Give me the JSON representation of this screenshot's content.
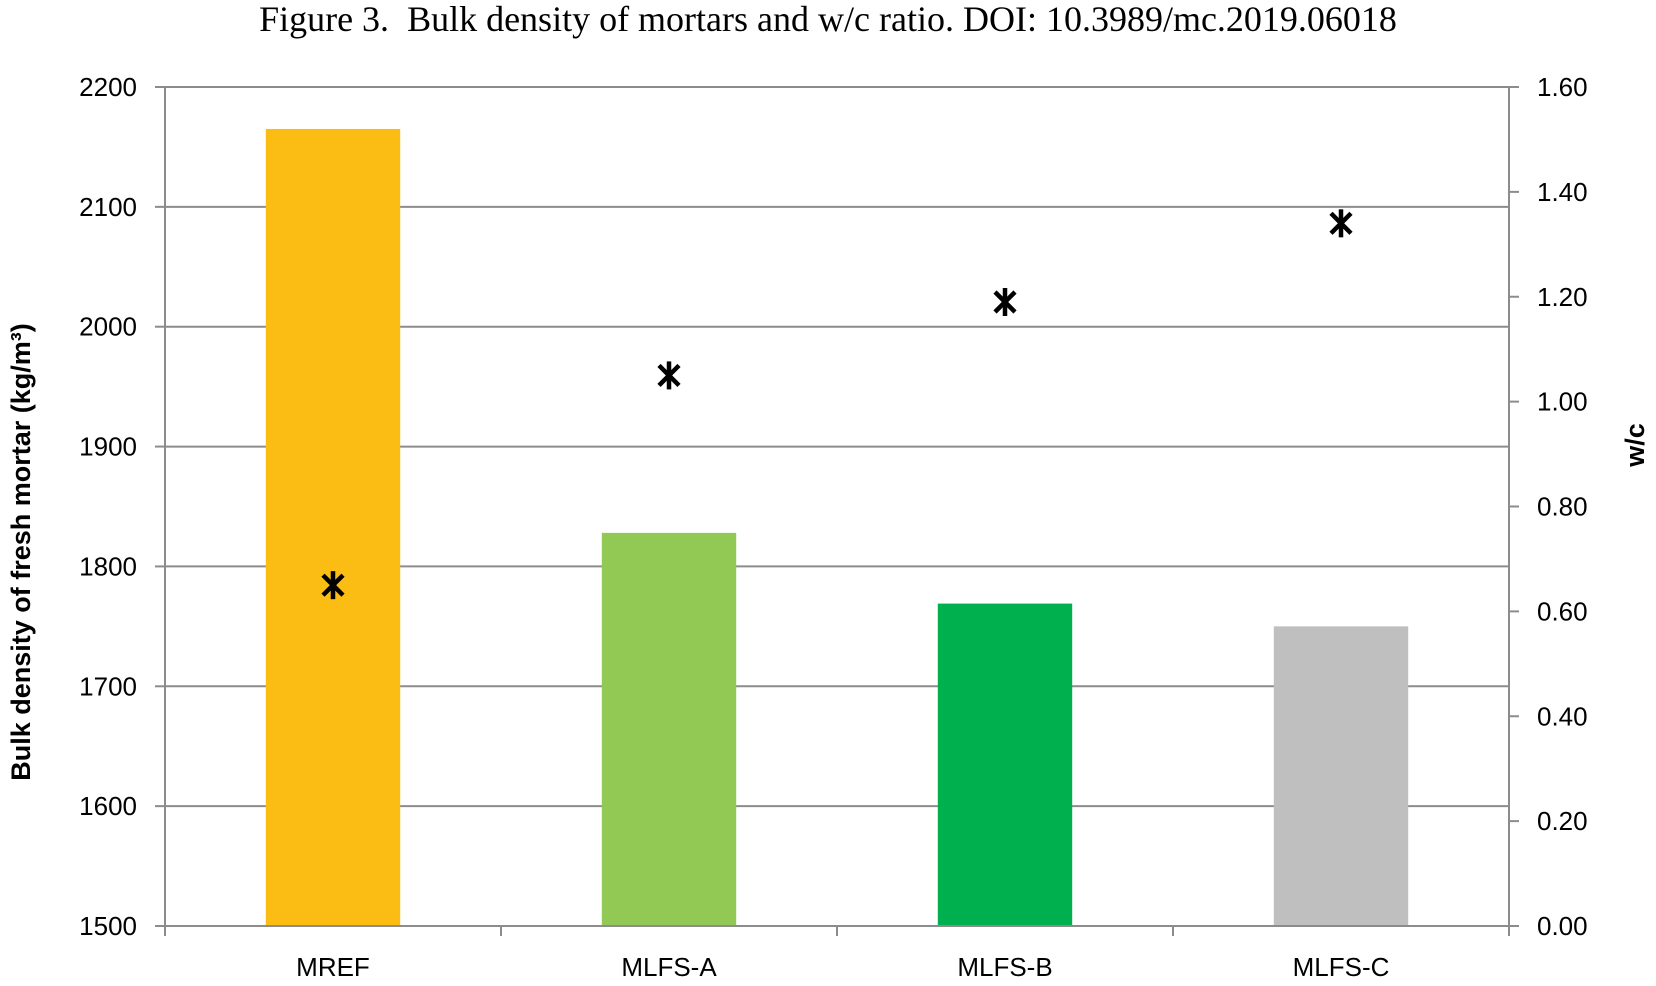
{
  "caption": {
    "figure_label": "Figure 3.",
    "text": "Bulk density of mortars and w/c ratio. DOI: 10.3989/mc.2019.06018"
  },
  "chart_data": {
    "type": "bar",
    "categories": [
      "MREF",
      "MLFS-A",
      "MLFS-B",
      "MLFS-C"
    ],
    "series": [
      {
        "values": [
          2165,
          1828,
          1769,
          1750
        ],
        "axis": "left",
        "kind": "bar",
        "colors": [
          "#fbbd13",
          "#92c955",
          "#00b04f",
          "#bfbfbf"
        ]
      },
      {
        "values": [
          0.65,
          1.05,
          1.19,
          1.34
        ],
        "axis": "right",
        "kind": "marker",
        "marker": "asterisk",
        "color": "#000000"
      }
    ],
    "ylabel": "Bulk density of fresh mortar (kg/m³)",
    "y2label": "w/c",
    "ylim": [
      1500,
      2200
    ],
    "yticks": [
      "1500",
      "1600",
      "1700",
      "1800",
      "1900",
      "2000",
      "2100",
      "2200"
    ],
    "y2lim": [
      0,
      1.6
    ],
    "y2ticks": [
      "0.00",
      "0.20",
      "0.40",
      "0.60",
      "0.80",
      "1.00",
      "1.20",
      "1.40",
      "1.60"
    ],
    "grid": true,
    "legend": "none"
  }
}
